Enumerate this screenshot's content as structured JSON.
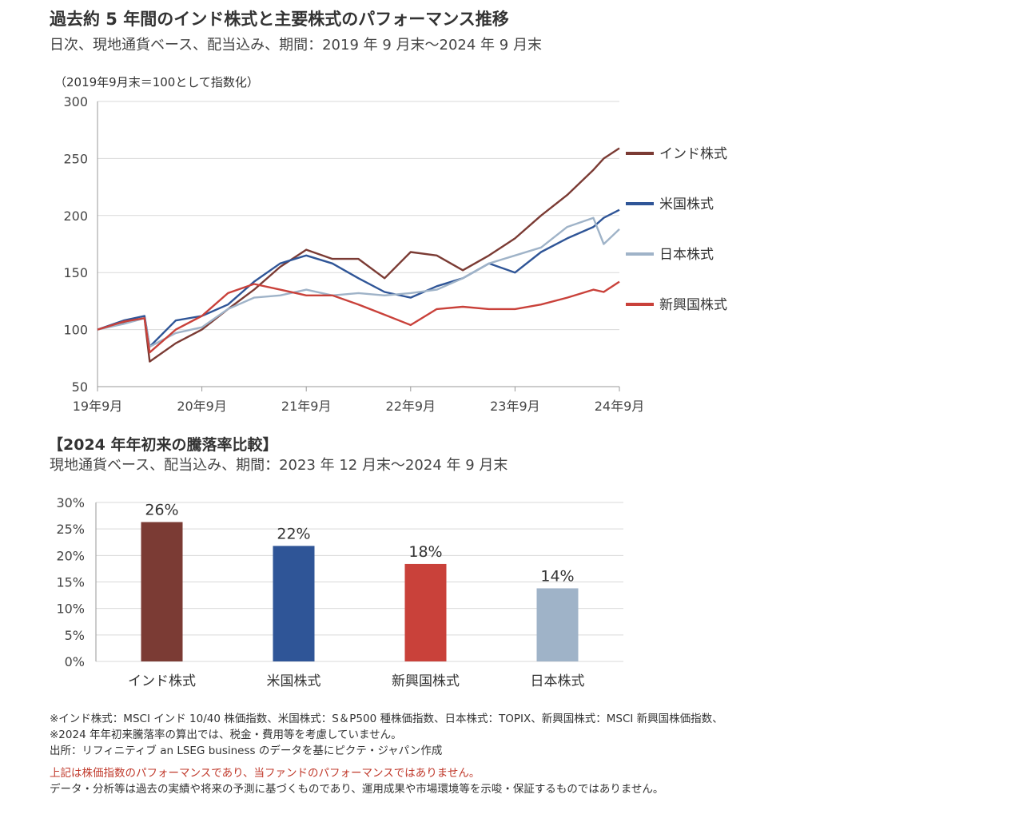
{
  "title": "過去約 5 年間のインド株式と主要株式のパフォーマンス推移",
  "subtitle": "日次、現地通貨ベース、配当込み、期間：2019 年 9 月末～2024 年 9 月末",
  "title2": "【2024 年年初来の騰落率比較】",
  "subtitle2": "現地通貨ベース、配当込み、期間：2023 年 12 月末～2024 年 9 月末",
  "notes": {
    "line1": "※インド株式：MSCI インド 10/40 株価指数、米国株式：S＆P500 種株価指数、日本株式：TOPIX、新興国株式：MSCI 新興国株価指数、",
    "line2": "※2024 年年初来騰落率の算出では、税金・費用等を考慮していません。",
    "line3": "出所：リフィニティブ an LSEG business のデータを基にピクテ・ジャパン作成",
    "warning": "上記は株価指数のパフォーマンスであり、当ファンドのパフォーマンスではありません。",
    "disclaimer": "データ・分析等は過去の実績や将来の予測に基づくものであり、運用成果や市場環境等を示唆・保証するものではありません。"
  },
  "chart_data": [
    {
      "type": "line",
      "ylabel": "（2019年9月末＝100として指数化）",
      "ylim": [
        50,
        300
      ],
      "yticks": [
        "50",
        "100",
        "150",
        "200",
        "250",
        "300"
      ],
      "xticks": [
        "19年9月",
        "20年9月",
        "21年9月",
        "22年9月",
        "23年9月",
        "24年9月"
      ],
      "grid": true,
      "legend_position": "right, at line ends",
      "x": [
        2019.75,
        2020.0,
        2020.2,
        2020.25,
        2020.5,
        2020.75,
        2021.0,
        2021.25,
        2021.5,
        2021.75,
        2022.0,
        2022.25,
        2022.5,
        2022.75,
        2023.0,
        2023.25,
        2023.5,
        2023.75,
        2024.0,
        2024.25,
        2024.5,
        2024.6,
        2024.75
      ],
      "series": [
        {
          "name": "インド株式",
          "color": "#7b3b34",
          "values": [
            100,
            106,
            110,
            72,
            88,
            100,
            118,
            135,
            155,
            170,
            162,
            162,
            145,
            168,
            165,
            152,
            165,
            180,
            200,
            218,
            240,
            250,
            259
          ]
        },
        {
          "name": "米国株式",
          "color": "#2f5597",
          "values": [
            100,
            108,
            112,
            85,
            108,
            112,
            122,
            142,
            158,
            165,
            158,
            145,
            133,
            128,
            138,
            145,
            158,
            150,
            168,
            180,
            190,
            198,
            205
          ]
        },
        {
          "name": "日本株式",
          "color": "#9fb3c8",
          "values": [
            100,
            105,
            110,
            85,
            97,
            102,
            118,
            128,
            130,
            135,
            130,
            132,
            130,
            132,
            135,
            145,
            158,
            165,
            172,
            190,
            198,
            175,
            188
          ]
        },
        {
          "name": "新興国株式",
          "color": "#c9413a",
          "values": [
            100,
            107,
            110,
            80,
            100,
            112,
            132,
            140,
            135,
            130,
            130,
            122,
            113,
            104,
            118,
            120,
            118,
            118,
            122,
            128,
            135,
            133,
            142
          ]
        }
      ]
    },
    {
      "type": "bar",
      "ylim": [
        0,
        30
      ],
      "yticks": [
        "0%",
        "5%",
        "10%",
        "15%",
        "20%",
        "25%",
        "30%"
      ],
      "grid": true,
      "categories": [
        "インド株式",
        "米国株式",
        "新興国株式",
        "日本株式"
      ],
      "values": [
        26.3,
        21.8,
        18.4,
        13.8
      ],
      "data_labels": [
        "26%",
        "22%",
        "18%",
        "14%"
      ],
      "colors": [
        "#7b3b34",
        "#2f5597",
        "#c9413a",
        "#9fb3c8"
      ]
    }
  ]
}
